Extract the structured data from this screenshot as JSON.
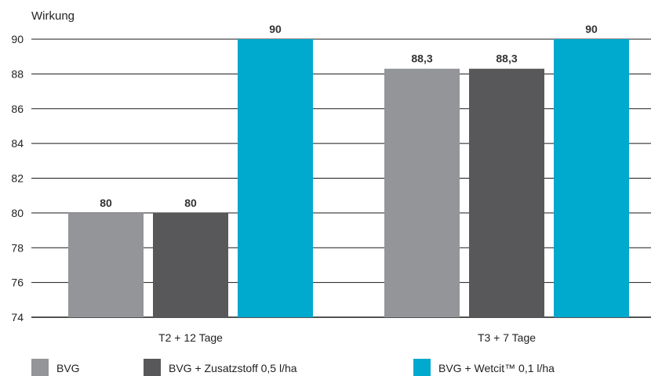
{
  "chart_data": {
    "type": "bar",
    "ylabel": "Wirkung",
    "xlabel": "",
    "ylim": [
      74,
      90
    ],
    "yticks": [
      "74",
      "76",
      "78",
      "80",
      "82",
      "84",
      "86",
      "88",
      "90"
    ],
    "categories": [
      "T2 + 12 Tage",
      "T3 + 7 Tage"
    ],
    "series": [
      {
        "name": "BVG",
        "color": "#949599",
        "values": [
          80,
          88.3
        ],
        "labels": [
          "80",
          "88,3"
        ]
      },
      {
        "name": "BVG + Zusatzstoff 0,5 l/ha",
        "color": "#58585a",
        "values": [
          80,
          88.3
        ],
        "labels": [
          "80",
          "88,3"
        ]
      },
      {
        "name": "BVG + Wetcit™ 0,1 l/ha",
        "color": "#00a9ce",
        "values": [
          90,
          90
        ],
        "labels": [
          "90",
          "90"
        ]
      }
    ],
    "grid": true,
    "legend": "bottom"
  }
}
